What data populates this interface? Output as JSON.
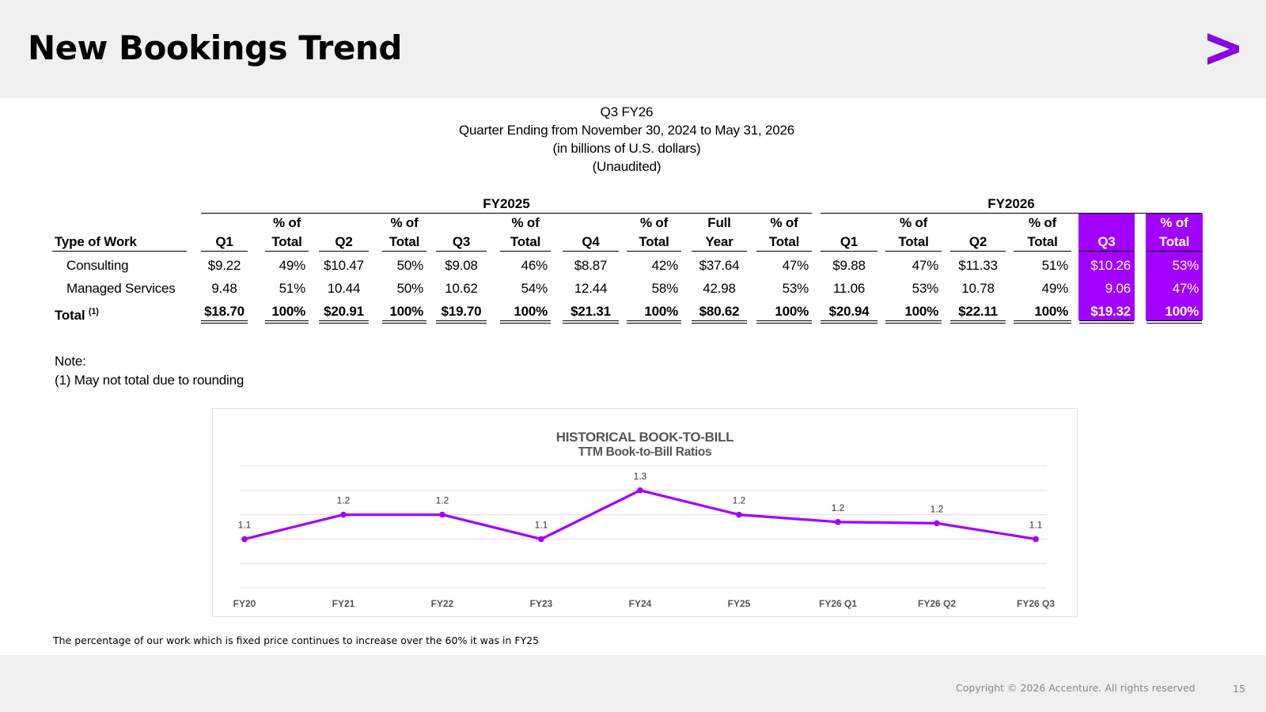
{
  "title": "New Bookings Trend",
  "logo": {
    "name": "accenture-greater-than-logo",
    "color": "#a100ff"
  },
  "report": {
    "line1": "Q3 FY26",
    "line2": "Quarter Ending from November 30, 2024 to May 31, 2026",
    "line3": "(in billions of U.S. dollars)",
    "line4": "(Unaudited)"
  },
  "table": {
    "fy2025_label": "FY2025",
    "fy2026_label": "FY2026",
    "type_header": "Type of Work",
    "pct_top": "% of",
    "pct_bottom": "Total",
    "full_top": "Full",
    "full_bottom": "Year",
    "q1": "Q1",
    "q2": "Q2",
    "q3": "Q3",
    "q4": "Q4",
    "total_sup": "(1)",
    "highlight_color": "#a100ff",
    "rows": [
      {
        "label": "Consulting",
        "values": [
          "$9.22",
          "49%",
          "$10.47",
          "50%",
          "$9.08",
          "46%",
          "$8.87",
          "42%",
          "$37.64",
          "47%",
          "$9.88",
          "47%",
          "$11.33",
          "51%",
          "$10.26",
          "53%"
        ]
      },
      {
        "label": "Managed Services",
        "values": [
          "9.48",
          "51%",
          "10.44",
          "50%",
          "10.62",
          "54%",
          "12.44",
          "58%",
          "42.98",
          "53%",
          "11.06",
          "53%",
          "10.78",
          "49%",
          "9.06",
          "47%"
        ]
      },
      {
        "label": "Total",
        "values": [
          "$18.70",
          "100%",
          "$20.91",
          "100%",
          "$19.70",
          "100%",
          "$21.31",
          "100%",
          "$80.62",
          "100%",
          "$20.94",
          "100%",
          "$22.11",
          "100%",
          "$19.32",
          "100%"
        ]
      }
    ]
  },
  "note": {
    "line1": "Note:",
    "line2": "(1) May not total due to rounding"
  },
  "chart_data": {
    "type": "line",
    "title": "HISTORICAL BOOK-TO-BILL",
    "subtitle": "TTM Book-to-Bill Ratios",
    "categories": [
      "FY20",
      "FY21",
      "FY22",
      "FY23",
      "FY24",
      "FY25",
      "FY26 Q1",
      "FY26 Q2",
      "FY26 Q3"
    ],
    "values": [
      1.1,
      1.2,
      1.2,
      1.1,
      1.3,
      1.2,
      1.17,
      1.165,
      1.1
    ],
    "data_labels": [
      "1.1",
      "1.2",
      "1.2",
      "1.1",
      "1.3",
      "1.2",
      "1.2",
      "1.2",
      "1.1"
    ],
    "ylim": [
      0.9,
      1.4
    ],
    "gridlines": [
      0.9,
      1.0,
      1.1,
      1.2,
      1.3,
      1.4
    ],
    "y_axis_labels_shown": false,
    "grid": true,
    "line_color": "#a100ff",
    "grid_color": "#ecd4f6"
  },
  "footnote": "The percentage of our work which is fixed price continues to increase over the 60% it was in FY25",
  "footer": {
    "copyright": "Copyright © 2026 Accenture. All rights reserved",
    "page_number": "15"
  }
}
